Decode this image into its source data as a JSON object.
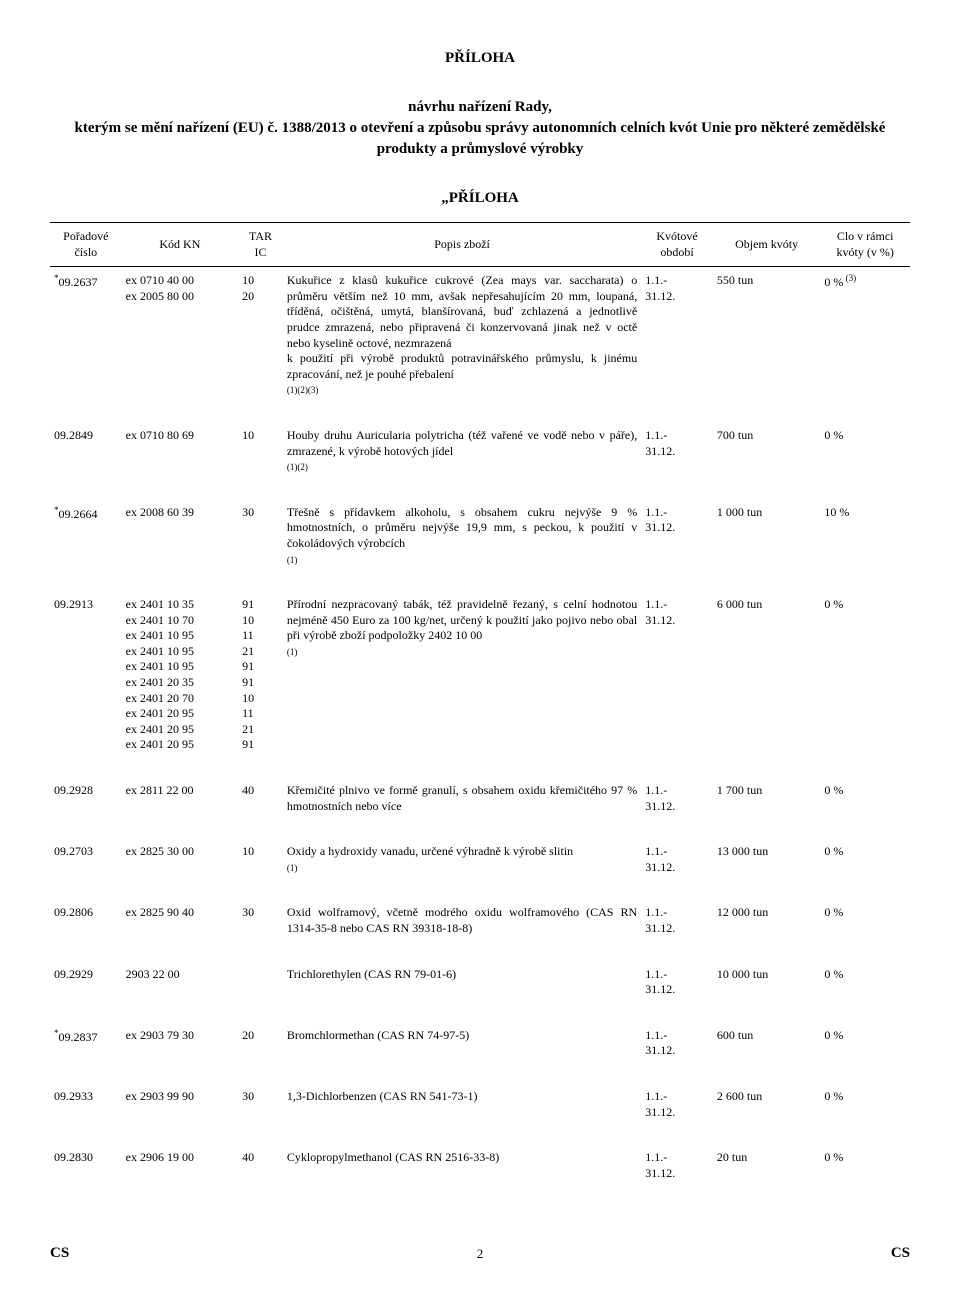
{
  "title": "PŘÍLOHA",
  "subtitle_line1": "návrhu nařízení Rady,",
  "subtitle_line2": "kterým se mění nařízení (EU) č. 1388/2013 o otevření a způsobu správy autonomních celních kvót Unie pro některé zemědělské produkty a průmyslové výrobky",
  "section": "„PŘÍLOHA",
  "columns": {
    "c1": "Pořadové\nčíslo",
    "c2": "Kód KN",
    "c3": "TAR\nIC",
    "c4": "Popis zboží",
    "c5": "Kvótové\nobdobí",
    "c6": "Objem\nkvóty",
    "c7": "Clo\nv rámci\nkvóty\n(v %)"
  },
  "rows": [
    {
      "num_prefix": "*",
      "num": "09.2637",
      "kn": "ex 0710 40 00\nex 2005 80 00",
      "ic": "10\n20",
      "desc": "Kukuřice z klasů kukuřice cukrové (Zea mays var. saccharata) o průměru větším než 10 mm, avšak nepřesahujícím 20 mm, loupaná, tříděná, očištěná, umytá, blanšírovaná, buď zchlazená a jednotlivě prudce zmrazená, nebo připravená či konzervovaná jinak než v octě nebo kyselině octové, nezmrazená\nk použití při výrobě produktů potravinářského průmyslu, k jinému zpracování, než je pouhé přebalení",
      "desc_fn": "(1)(2)(3)",
      "period": "1.1.-\n31.12.",
      "vol": "550 tun",
      "clo": "0 %",
      "clo_fn": " (3)"
    },
    {
      "num": "09.2849",
      "kn": "ex 0710 80 69",
      "ic": "10",
      "desc": "Houby druhu Auricularia polytricha (též vařené ve vodě nebo v páře), zmrazené, k výrobě hotových jídel",
      "desc_fn": "(1)(2)",
      "period": "1.1.-\n31.12.",
      "vol": "700 tun",
      "clo": "0 %"
    },
    {
      "num_prefix": "*",
      "num": "09.2664",
      "kn": "ex 2008 60 39",
      "ic": "30",
      "desc": "Třešně s přídavkem alkoholu, s obsahem cukru nejvýše 9 % hmotnostních, o průměru nejvýše 19,9 mm, s peckou, k použití v čokoládových výrobcích",
      "desc_fn": "(1)",
      "period": "1.1.-\n31.12.",
      "vol": "1 000 tun",
      "clo": "10 %"
    },
    {
      "num": "09.2913",
      "kn": "ex 2401 10 35\nex 2401 10 70\nex 2401 10 95\nex 2401 10 95\nex 2401 10 95\nex 2401 20 35\nex 2401 20 70\nex 2401 20 95\nex 2401 20 95\nex 2401 20 95",
      "ic": "91\n10\n11\n21\n91\n91\n10\n11\n21\n91",
      "desc": "Přírodní nezpracovaný tabák, též pravidelně řezaný, s celní hodnotou nejméně 450 Euro za 100 kg/net, určený k použití jako pojivo nebo obal při výrobě zboží podpoložky 2402 10 00",
      "desc_fn": "(1)",
      "period": "1.1.-\n31.12.",
      "vol": "6 000 tun",
      "clo": "0 %"
    },
    {
      "num": "09.2928",
      "kn": "ex 2811 22 00",
      "ic": "40",
      "desc": "Křemičité plnivo ve formě granulí, s obsahem oxidu křemičitého 97 % hmotnostních nebo více",
      "period": "1.1.-\n31.12.",
      "vol": "1 700 tun",
      "clo": "0 %"
    },
    {
      "num": "09.2703",
      "kn": "ex 2825 30 00",
      "ic": "10",
      "desc": "Oxidy a hydroxidy vanadu, určené výhradně k výrobě slitin",
      "desc_fn": "(1)",
      "period": "1.1.-\n31.12.",
      "vol": "13 000 tun",
      "clo": "0 %"
    },
    {
      "num": "09.2806",
      "kn": "ex 2825 90 40",
      "ic": "30",
      "desc": "Oxid wolframový, včetně modrého oxidu wolframového (CAS RN 1314-35-8 nebo CAS RN 39318-18-8)",
      "period": "1.1.-\n31.12.",
      "vol": "12 000 tun",
      "clo": "0 %"
    },
    {
      "num": "09.2929",
      "kn": "2903 22 00",
      "ic": "",
      "desc": "Trichlorethylen (CAS RN 79-01-6)",
      "period": "1.1.-\n31.12.",
      "vol": "10 000 tun",
      "clo": "0 %"
    },
    {
      "num_prefix": "*",
      "num": "09.2837",
      "kn": "ex 2903 79 30",
      "ic": "20",
      "desc": "Bromchlormethan (CAS RN 74-97-5)",
      "period": "1.1.-\n31.12.",
      "vol": "600 tun",
      "clo": "0 %"
    },
    {
      "num": "09.2933",
      "kn": "ex 2903 99 90",
      "ic": "30",
      "desc": "1,3-Dichlorbenzen (CAS RN 541-73-1)",
      "period": "1.1.-\n31.12.",
      "vol": "2 600 tun",
      "clo": "0 %"
    },
    {
      "num": "09.2830",
      "kn": "ex 2906 19 00",
      "ic": "40",
      "desc": "Cyklopropylmethanol (CAS RN 2516-33-8)",
      "period": "1.1.-\n31.12.",
      "vol": "20 tun",
      "clo": "0 %"
    }
  ],
  "footer": {
    "left": "CS",
    "page": "2",
    "right": "CS"
  },
  "layout": {
    "col_widths_pct": [
      8,
      13,
      5,
      38,
      8,
      12,
      10
    ],
    "header_border": "#000000"
  }
}
